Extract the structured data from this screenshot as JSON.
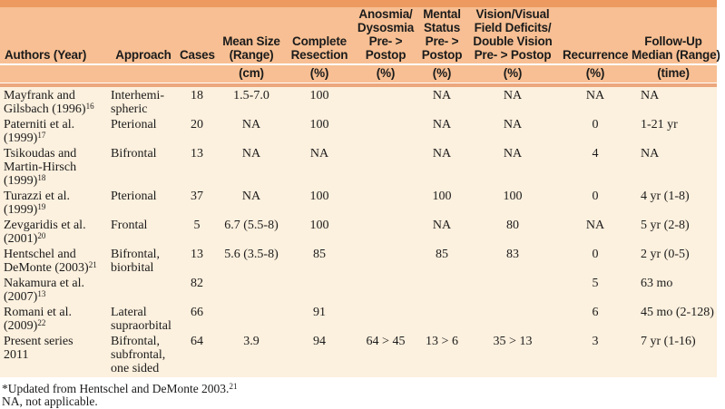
{
  "colors": {
    "top_bar": "#EC9A60",
    "header_bg": "#F7BF93",
    "body_bg": "#FCF0DE",
    "divider": "#ECA77D",
    "text": "#1B1B1B"
  },
  "table": {
    "columns": [
      {
        "id": "authors",
        "label": "Authors (Year)",
        "sub": ""
      },
      {
        "id": "approach",
        "label": "Approach",
        "sub": ""
      },
      {
        "id": "cases",
        "label": "Cases",
        "sub": ""
      },
      {
        "id": "mean_size",
        "label": "Mean Size\n(Range)",
        "sub": "(cm)"
      },
      {
        "id": "complete_resection",
        "label": "Complete\nResection",
        "sub": "(%)"
      },
      {
        "id": "anosmia_dysosmia",
        "label": "Anosmia/\nDysosmia\nPre- >\nPostop",
        "sub": "(%)"
      },
      {
        "id": "mental_status",
        "label": "Mental\nStatus\nPre- >\nPostop",
        "sub": "(%)"
      },
      {
        "id": "vision_deficits",
        "label": "Vision/Visual\nField Deficits/\nDouble Vision\nPre- > Postop",
        "sub": "(%)"
      },
      {
        "id": "recurrence",
        "label": "Recurrence",
        "sub": "(%)"
      },
      {
        "id": "follow_up",
        "label": "Follow-Up\nMedian (Range)",
        "sub": "(time)"
      }
    ],
    "rows": [
      {
        "authors": "Mayfrank and\nGilsbach (1996)",
        "ref": "16",
        "approach": "Interhemi-\nspheric",
        "cases": "18",
        "mean_size": "1.5-7.0",
        "complete_resection": "100",
        "anosmia_dysosmia": "",
        "mental_status": "NA",
        "vision_deficits": "NA",
        "recurrence": "NA",
        "follow_up": "NA"
      },
      {
        "authors": "Paterniti et al.\n(1999)",
        "ref": "17",
        "approach": "Pterional",
        "cases": "20",
        "mean_size": "NA",
        "complete_resection": "100",
        "anosmia_dysosmia": "",
        "mental_status": "NA",
        "vision_deficits": "NA",
        "recurrence": "0",
        "follow_up": "1-21 yr"
      },
      {
        "authors": "Tsikoudas and\nMartin-Hirsch\n(1999)",
        "ref": "18",
        "approach": "Bifrontal",
        "cases": "13",
        "mean_size": "NA",
        "complete_resection": "NA",
        "anosmia_dysosmia": "",
        "mental_status": "NA",
        "vision_deficits": "NA",
        "recurrence": "4",
        "follow_up": "NA"
      },
      {
        "authors": "Turazzi et al.\n(1999)",
        "ref": "19",
        "approach": "Pterional",
        "cases": "37",
        "mean_size": "NA",
        "complete_resection": "100",
        "anosmia_dysosmia": "",
        "mental_status": "100",
        "vision_deficits": "100",
        "recurrence": "0",
        "follow_up": "4 yr (1-8)"
      },
      {
        "authors": "Zevgaridis et al.\n(2001)",
        "ref": "20",
        "approach": "Frontal",
        "cases": "5",
        "mean_size": "6.7 (5.5-8)",
        "complete_resection": "100",
        "anosmia_dysosmia": "",
        "mental_status": "NA",
        "vision_deficits": "80",
        "recurrence": "NA",
        "follow_up": "5 yr (2-8)"
      },
      {
        "authors": "Hentschel and\nDeMonte (2003)",
        "ref": "21",
        "approach": "Bifrontal,\nbiorbital",
        "cases": "13",
        "mean_size": "5.6 (3.5-8)",
        "complete_resection": "85",
        "anosmia_dysosmia": "",
        "mental_status": "85",
        "vision_deficits": "83",
        "recurrence": "0",
        "follow_up": "2 yr (0-5)"
      },
      {
        "authors": "Nakamura et al.\n(2007)",
        "ref": "13",
        "approach": "",
        "cases": "82",
        "mean_size": "",
        "complete_resection": "",
        "anosmia_dysosmia": "",
        "mental_status": "",
        "vision_deficits": "",
        "recurrence": "5",
        "follow_up": "63 mo"
      },
      {
        "authors": "Romani et al.\n(2009)",
        "ref": "22",
        "approach": "Lateral\nsupraorbital",
        "cases": "66",
        "mean_size": "",
        "complete_resection": "91",
        "anosmia_dysosmia": "",
        "mental_status": "",
        "vision_deficits": "",
        "recurrence": "6",
        "follow_up": "45 mo (2-128)"
      },
      {
        "authors": "Present series\n2011",
        "ref": "",
        "approach": "Bifrontal,\nsubfrontal,\none sided",
        "cases": "64",
        "mean_size": "3.9",
        "complete_resection": "94",
        "anosmia_dysosmia": "64 > 45",
        "mental_status": "13 > 6",
        "vision_deficits": "35 > 13",
        "recurrence": "3",
        "follow_up": "7 yr (1-16)"
      }
    ]
  },
  "footnotes": [
    {
      "text": "*Updated from Hentschel and DeMonte 2003.",
      "ref": "21"
    },
    {
      "text": "NA, not applicable.",
      "ref": ""
    }
  ]
}
